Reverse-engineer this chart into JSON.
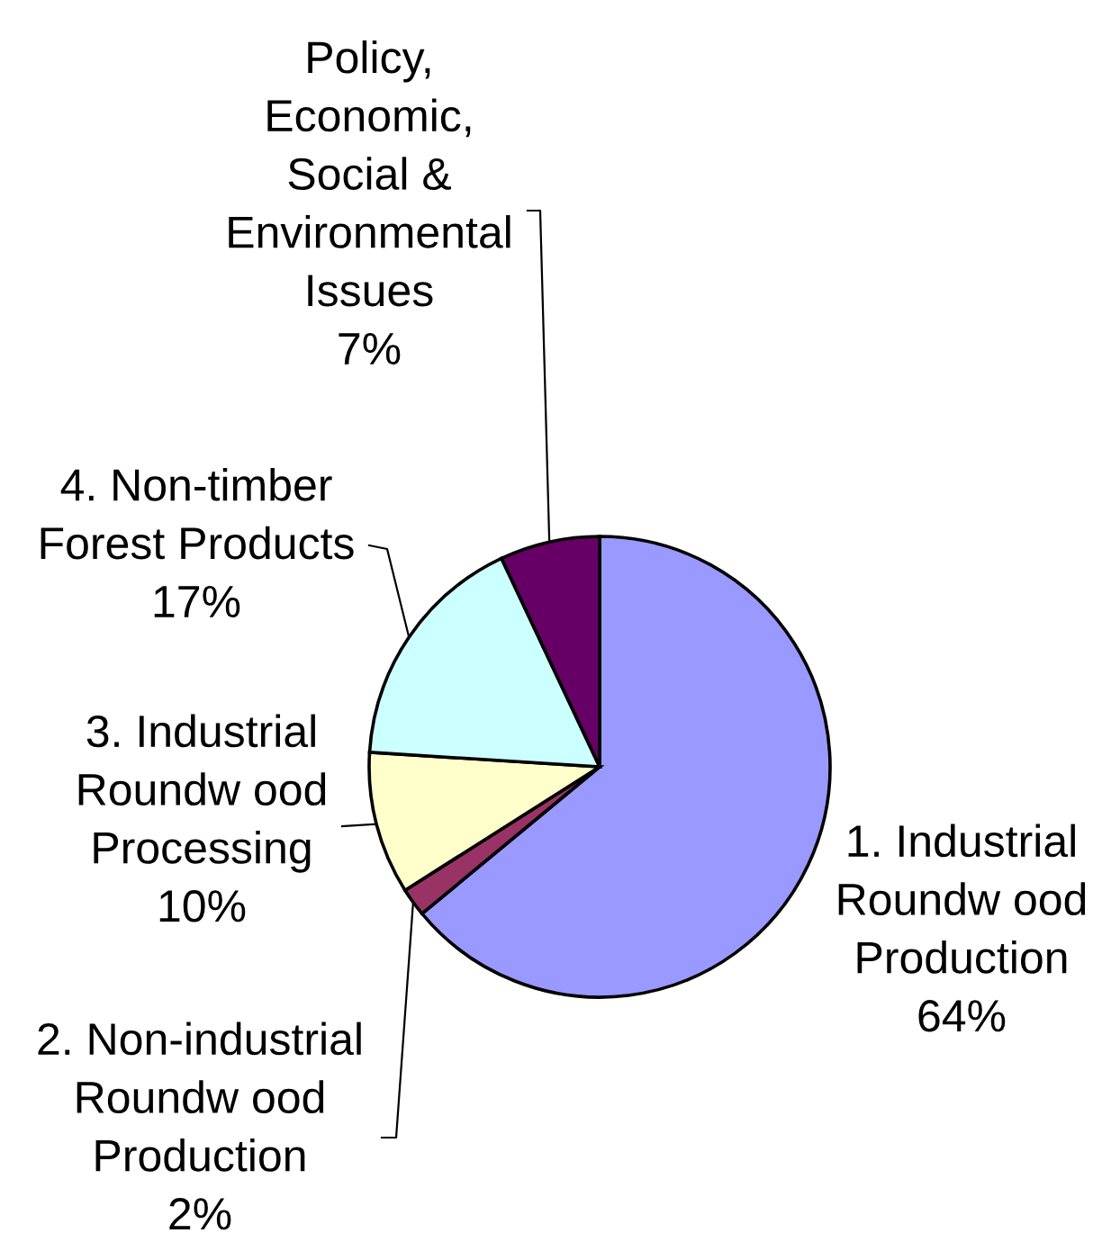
{
  "chart_data": {
    "type": "pie",
    "categories": [
      "1. Industrial\nRoundw ood\nProduction",
      "2. Non-industrial\nRoundw ood\nProduction",
      "3. Industrial\nRoundw ood\nProcessing",
      "4. Non-timber\nForest Products",
      "Policy,\nEconomic,\nSocial &\nEnvironmental\nIssues"
    ],
    "values": [
      64,
      2,
      10,
      17,
      7
    ],
    "value_labels": [
      "64%",
      "2%",
      "10%",
      "17%",
      "7%"
    ],
    "colors": [
      "#9999ff",
      "#993366",
      "#ffffcc",
      "#ccffff",
      "#660066"
    ]
  }
}
